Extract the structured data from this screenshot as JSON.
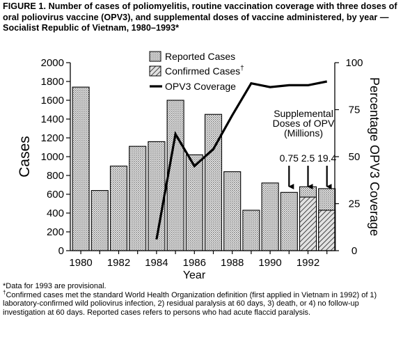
{
  "title": {
    "label": "FIGURE 1.",
    "text": "Number of cases of poliomyelitis, routine vaccination coverage with three doses of oral poliovirus vaccine (OPV3), and supplemental doses of vaccine administered, by year — Socialist Republic of Vietnam, 1980–1993*"
  },
  "chart_data": {
    "type": "bar",
    "x": [
      1980,
      1981,
      1982,
      1983,
      1984,
      1985,
      1986,
      1987,
      1988,
      1989,
      1990,
      1991,
      1992,
      1993
    ],
    "x_tick_labels": [
      "1980",
      "1982",
      "1984",
      "1986",
      "1988",
      "1990",
      "1992"
    ],
    "xlabel": "Year",
    "ylabel": "Cases",
    "ylim": [
      0,
      2000
    ],
    "y_ticks": [
      "0",
      "200",
      "400",
      "600",
      "800",
      "1000",
      "1200",
      "1400",
      "1600",
      "1800",
      "2000"
    ],
    "y2label": "Percentage OPV3 Coverage",
    "y2lim": [
      0,
      100
    ],
    "y2_ticks": [
      "0",
      "25",
      "50",
      "75",
      "100"
    ],
    "series": [
      {
        "name": "Reported Cases",
        "kind": "bar",
        "values": [
          1740,
          640,
          900,
          1110,
          1160,
          1600,
          1020,
          1450,
          840,
          430,
          720,
          620,
          680,
          660
        ]
      },
      {
        "name": "Confirmed Cases",
        "marker": "†",
        "kind": "bar-hatched",
        "values": [
          null,
          null,
          null,
          null,
          null,
          null,
          null,
          null,
          null,
          null,
          null,
          null,
          570,
          430
        ]
      },
      {
        "name": "OPV3 Coverage",
        "kind": "line",
        "axis": "right",
        "x": [
          1984,
          1985,
          1986,
          1987,
          1988,
          1989,
          1990,
          1991,
          1992,
          1993
        ],
        "values": [
          6,
          62,
          45,
          54,
          72,
          89,
          87,
          88,
          88,
          90
        ]
      }
    ],
    "annotations": {
      "title_lines": [
        "Supplemental",
        "Doses of OPV",
        "(Millions)"
      ],
      "doses": [
        {
          "year": 1991,
          "label": "0.75"
        },
        {
          "year": 1992,
          "label": "2.5"
        },
        {
          "year": 1993,
          "label": "19.4"
        }
      ]
    },
    "legend": "top-center",
    "colors": {
      "bar_fill": "#d0d0d0",
      "ink": "#000000"
    }
  },
  "footnotes": {
    "provisional": "*Data for 1993 are provisional.",
    "confirmed_marker": "†",
    "confirmed": "Confirmed cases met the standard World Health Organization definition (first applied in Vietnam in 1992) of 1) laboratory-confirmed wild poliovirus infection, 2) residual paralysis at 60 days, 3) death, or 4) no follow-up investigation at 60 days. Reported cases refers to persons who had acute flaccid paralysis."
  }
}
